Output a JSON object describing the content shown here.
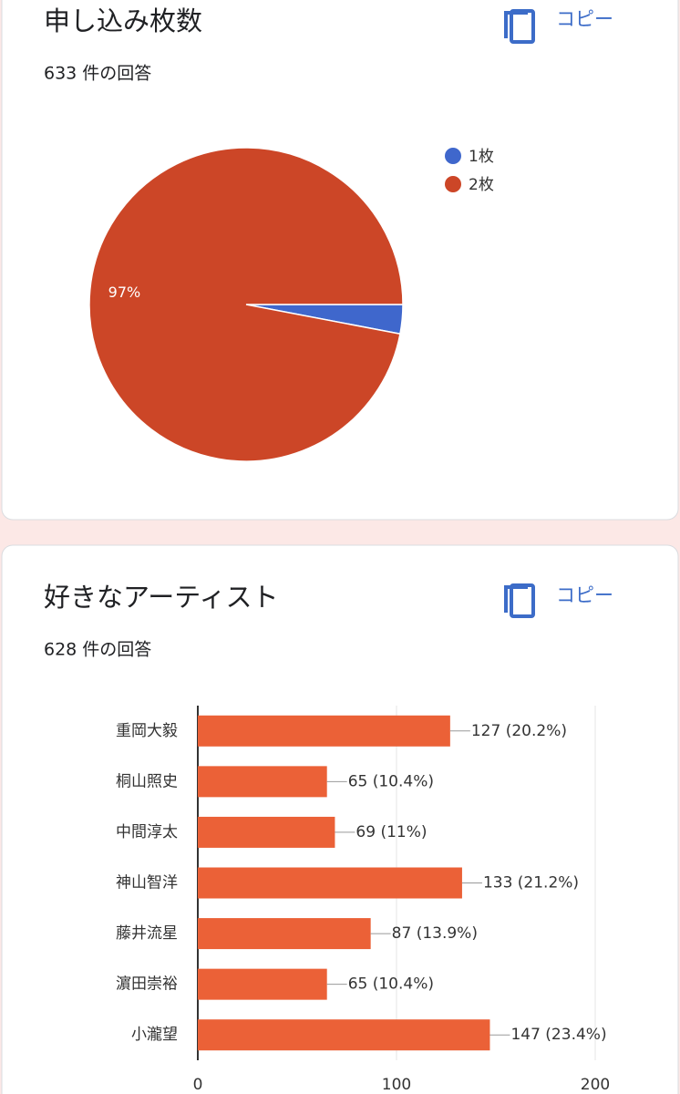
{
  "chart_data": [
    {
      "type": "pie",
      "title": "申し込み枚数",
      "subtitle": "633 件の回答",
      "copy_button": "コピー",
      "categories": [
        "1枚",
        "2枚"
      ],
      "values": [
        3,
        97
      ],
      "value_labels": [
        null,
        "97%"
      ],
      "colors": [
        "#3f67cc",
        "#cc4627"
      ],
      "legend": "right"
    },
    {
      "type": "hbar",
      "title": "好きなアーティスト",
      "subtitle": "628 件の回答",
      "copy_button": "コピー",
      "categories": [
        "重岡大毅",
        "桐山照史",
        "中間淳太",
        "神山智洋",
        "藤井流星",
        "濵田崇裕",
        "小瀧望"
      ],
      "values": [
        127,
        65,
        69,
        133,
        87,
        65,
        147
      ],
      "value_labels": [
        "127 (20.2%)",
        "65 (10.4%)",
        "69 (11%)",
        "133 (21.2%)",
        "87 (13.9%)",
        "65 (10.4%)",
        "147 (23.4%)"
      ],
      "color": "#eb6137",
      "xlim": [
        0,
        200
      ],
      "xticks": [
        0,
        100,
        200
      ],
      "grid": true
    }
  ]
}
